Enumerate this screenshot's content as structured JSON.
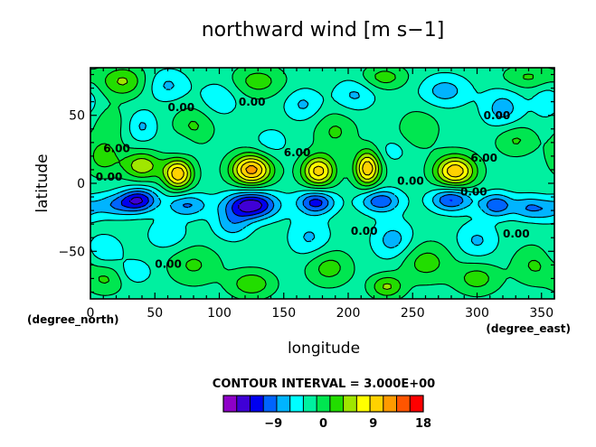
{
  "chart_data": {
    "type": "heatmap",
    "title": "northward wind [m s−1]",
    "xlabel": "longitude",
    "ylabel": "latitude",
    "x_unit_label": "(degree_east)",
    "y_unit_label": "(degree_north)",
    "xlim": [
      0,
      360
    ],
    "ylim": [
      -85,
      85
    ],
    "x_ticks": [
      0,
      50,
      100,
      150,
      200,
      250,
      300,
      350
    ],
    "x_tick_labels": [
      "0",
      "50",
      "100",
      "150",
      "200",
      "250",
      "300",
      "350"
    ],
    "y_ticks": [
      -50,
      0,
      50
    ],
    "y_tick_labels": [
      "−50",
      "0",
      "50"
    ],
    "contour_interval_text": "CONTOUR INTERVAL = 3.000E+00",
    "contour_labels": [
      {
        "text": "0.00",
        "x": 60,
        "y": 53
      },
      {
        "text": "0.00",
        "x": 115,
        "y": 57
      },
      {
        "text": "0.00",
        "x": 305,
        "y": 47
      },
      {
        "text": "6.00",
        "x": 10,
        "y": 23
      },
      {
        "text": "6.00",
        "x": 150,
        "y": 20
      },
      {
        "text": "6.00",
        "x": 295,
        "y": 16
      },
      {
        "text": "0.00",
        "x": 4,
        "y": 2
      },
      {
        "text": "0.00",
        "x": 238,
        "y": -1
      },
      {
        "text": "0.00",
        "x": 287,
        "y": -9
      },
      {
        "text": "0.00",
        "x": 202,
        "y": -38
      },
      {
        "text": "0.00",
        "x": 320,
        "y": -40
      },
      {
        "text": "0.00",
        "x": 50,
        "y": -62
      }
    ],
    "colorbar": {
      "levels": [
        -15,
        -12,
        -9,
        -6,
        -3,
        0,
        3,
        6,
        9,
        12,
        15,
        18
      ],
      "tick_values": [
        -9,
        0,
        9,
        18
      ],
      "tick_labels": [
        "−9",
        "0",
        "9",
        "18"
      ],
      "colors": [
        "#8e00c8",
        "#3f00d6",
        "#0000f0",
        "#0064ff",
        "#00b4ff",
        "#00ffff",
        "#00f0a0",
        "#00e650",
        "#22dd00",
        "#a0e600",
        "#ffff00",
        "#ffd200",
        "#ff9a00",
        "#ff5500",
        "#ff0000"
      ]
    },
    "features": [
      {
        "x": 68,
        "y": 7,
        "amp": 16,
        "sx": 8,
        "sy": 8
      },
      {
        "x": 125,
        "y": 10,
        "amp": 18,
        "sx": 11,
        "sy": 8
      },
      {
        "x": 177,
        "y": 9,
        "amp": 15,
        "sx": 9,
        "sy": 8
      },
      {
        "x": 215,
        "y": 11,
        "amp": 16,
        "sx": 7,
        "sy": 9
      },
      {
        "x": 283,
        "y": 9,
        "amp": 16,
        "sx": 11,
        "sy": 8
      },
      {
        "x": 40,
        "y": 13,
        "amp": 10,
        "sx": 10,
        "sy": 7
      },
      {
        "x": 10,
        "y": 20,
        "amp": 6,
        "sx": 10,
        "sy": 10
      },
      {
        "x": 20,
        "y": -16,
        "amp": -7,
        "sx": 14,
        "sy": 6
      },
      {
        "x": 38,
        "y": -12,
        "amp": -12,
        "sx": 10,
        "sy": 6
      },
      {
        "x": 75,
        "y": -16,
        "amp": -8,
        "sx": 11,
        "sy": 6
      },
      {
        "x": 125,
        "y": -16,
        "amp": -16,
        "sx": 14,
        "sy": 7
      },
      {
        "x": 175,
        "y": -14,
        "amp": -12,
        "sx": 10,
        "sy": 6
      },
      {
        "x": 225,
        "y": -13,
        "amp": -10,
        "sx": 11,
        "sy": 6
      },
      {
        "x": 280,
        "y": -12,
        "amp": -11,
        "sx": 11,
        "sy": 6
      },
      {
        "x": 315,
        "y": -16,
        "amp": -10,
        "sx": 9,
        "sy": 6
      },
      {
        "x": 340,
        "y": -18,
        "amp": -7,
        "sx": 9,
        "sy": 6
      },
      {
        "x": 355,
        "y": -20,
        "amp": -4,
        "sx": 8,
        "sy": 6
      },
      {
        "x": 80,
        "y": -60,
        "amp": 5,
        "sx": 14,
        "sy": 10
      },
      {
        "x": 185,
        "y": -62,
        "amp": 6,
        "sx": 12,
        "sy": 9
      },
      {
        "x": 260,
        "y": -58,
        "amp": 6,
        "sx": 14,
        "sy": 10
      },
      {
        "x": 345,
        "y": -60,
        "amp": 5,
        "sx": 12,
        "sy": 10
      },
      {
        "x": 125,
        "y": -74,
        "amp": 7,
        "sx": 12,
        "sy": 7
      },
      {
        "x": 230,
        "y": -76,
        "amp": 8,
        "sx": 9,
        "sy": 6
      },
      {
        "x": 300,
        "y": -70,
        "amp": 6,
        "sx": 12,
        "sy": 8
      },
      {
        "x": 12,
        "y": -70,
        "amp": 5,
        "sx": 10,
        "sy": 8
      },
      {
        "x": 60,
        "y": -38,
        "amp": -4,
        "sx": 11,
        "sy": 8
      },
      {
        "x": 110,
        "y": -30,
        "amp": -6,
        "sx": 10,
        "sy": 8
      },
      {
        "x": 170,
        "y": -40,
        "amp": -5,
        "sx": 11,
        "sy": 10
      },
      {
        "x": 235,
        "y": -42,
        "amp": -6,
        "sx": 11,
        "sy": 10
      },
      {
        "x": 300,
        "y": -42,
        "amp": -5,
        "sx": 11,
        "sy": 9
      },
      {
        "x": 10,
        "y": -50,
        "amp": -4,
        "sx": 11,
        "sy": 9
      },
      {
        "x": 35,
        "y": -65,
        "amp": -4,
        "sx": 9,
        "sy": 6
      },
      {
        "x": 25,
        "y": 75,
        "amp": 8,
        "sx": 12,
        "sy": 8
      },
      {
        "x": 130,
        "y": 75,
        "amp": 6,
        "sx": 14,
        "sy": 8
      },
      {
        "x": 228,
        "y": 78,
        "amp": 6,
        "sx": 12,
        "sy": 6
      },
      {
        "x": 340,
        "y": 78,
        "amp": 5,
        "sx": 14,
        "sy": 6
      },
      {
        "x": 80,
        "y": 42,
        "amp": 5,
        "sx": 11,
        "sy": 10
      },
      {
        "x": 190,
        "y": 38,
        "amp": 5,
        "sx": 11,
        "sy": 10
      },
      {
        "x": 255,
        "y": 40,
        "amp": 4,
        "sx": 11,
        "sy": 10
      },
      {
        "x": 330,
        "y": 32,
        "amp": 5,
        "sx": 11,
        "sy": 8
      },
      {
        "x": 15,
        "y": 45,
        "amp": 3,
        "sx": 10,
        "sy": 9
      },
      {
        "x": 60,
        "y": 72,
        "amp": -5,
        "sx": 11,
        "sy": 8
      },
      {
        "x": 100,
        "y": 62,
        "amp": -4,
        "sx": 11,
        "sy": 9
      },
      {
        "x": 165,
        "y": 58,
        "amp": -5,
        "sx": 10,
        "sy": 8
      },
      {
        "x": 205,
        "y": 65,
        "amp": -5,
        "sx": 11,
        "sy": 8
      },
      {
        "x": 275,
        "y": 68,
        "amp": -6,
        "sx": 13,
        "sy": 8
      },
      {
        "x": 320,
        "y": 55,
        "amp": -6,
        "sx": 11,
        "sy": 10
      },
      {
        "x": 355,
        "y": 60,
        "amp": -4,
        "sx": 8,
        "sy": 9
      },
      {
        "x": 40,
        "y": 42,
        "amp": -5,
        "sx": 8,
        "sy": 8
      },
      {
        "x": 140,
        "y": 30,
        "amp": -3,
        "sx": 10,
        "sy": 8
      },
      {
        "x": 70,
        "y": 28,
        "amp": -3,
        "sx": 8,
        "sy": 6
      },
      {
        "x": 235,
        "y": 24,
        "amp": -3,
        "sx": 8,
        "sy": 6
      }
    ]
  }
}
